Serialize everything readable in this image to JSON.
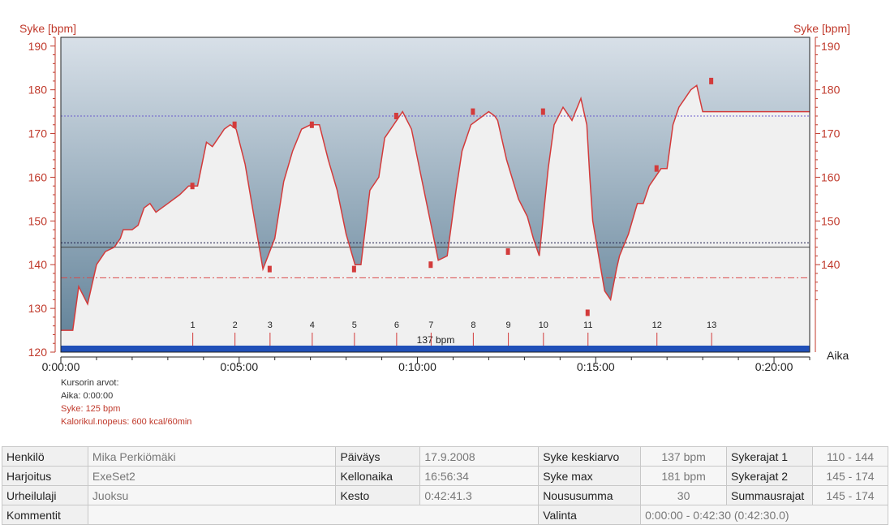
{
  "chart_data": {
    "type": "area",
    "ylabel_left": "Syke [bpm]",
    "ylabel_right": "Syke [bpm]",
    "xlabel": "Aika",
    "ylim": [
      120,
      192
    ],
    "y_ticks": [
      120,
      130,
      140,
      150,
      160,
      170,
      180,
      190
    ],
    "y_ticks_right": [
      140,
      150,
      160,
      170,
      180,
      190
    ],
    "xlim_seconds": [
      0,
      1260
    ],
    "x_ticks": [
      {
        "t": 0,
        "label": "0:00:00"
      },
      {
        "t": 300,
        "label": "0:05:00"
      },
      {
        "t": 600,
        "label": "0:10:00"
      },
      {
        "t": 900,
        "label": "0:15:00"
      },
      {
        "t": 1200,
        "label": "0:20:00"
      }
    ],
    "series": [
      {
        "x_seconds": [
          0,
          20,
          30,
          45,
          60,
          75,
          90,
          100,
          105,
          120,
          130,
          140,
          150,
          160,
          170,
          180,
          190,
          200,
          215,
          230,
          245,
          255,
          260,
          270,
          275,
          285,
          295,
          310,
          320,
          340,
          360,
          375,
          390,
          405,
          420,
          435,
          450,
          465,
          480,
          495,
          505,
          520,
          535,
          545,
          560,
          575,
          590,
          605,
          620,
          635,
          650,
          665,
          675,
          690,
          700,
          710,
          720,
          730,
          735,
          750,
          770,
          785,
          795,
          805,
          820,
          830,
          845,
          850,
          860,
          875,
          885,
          890,
          895,
          905,
          915,
          925,
          935,
          940,
          955,
          970,
          980,
          990,
          1000,
          1010,
          1020,
          1030,
          1040,
          1050,
          1060,
          1070,
          1080,
          1090,
          1100,
          1110,
          1115,
          1125,
          1140,
          1155,
          1170,
          1180,
          1185,
          1195,
          1205,
          1215,
          1225,
          1235,
          1245,
          1260
        ],
        "y": [
          125,
          125,
          135,
          131,
          140,
          143,
          144,
          146,
          148,
          148,
          149,
          153,
          154,
          152,
          153,
          154,
          155,
          156,
          158,
          158,
          168,
          167,
          168,
          170,
          171,
          172,
          171,
          163,
          155,
          139,
          146,
          159,
          166,
          171,
          172,
          172,
          164,
          157,
          147,
          140,
          140,
          157,
          160,
          169,
          172,
          175,
          171,
          161,
          151,
          141,
          142,
          157,
          166,
          172,
          173,
          174,
          175,
          174,
          173,
          164,
          155,
          151,
          146,
          142,
          162,
          172,
          176,
          175,
          173,
          178,
          172,
          160,
          150,
          142,
          134,
          132,
          139,
          142,
          147,
          154,
          154,
          158,
          160,
          162,
          162,
          172,
          176,
          178,
          180,
          181,
          175,
          175,
          175,
          175,
          175,
          175,
          175,
          175,
          175,
          175,
          175,
          175,
          175,
          175,
          175,
          175,
          175,
          175
        ]
      }
    ],
    "reference_lines": [
      {
        "y": 174,
        "style": "dotted",
        "color": "#6a5acd"
      },
      {
        "y": 145,
        "style": "dotted",
        "color": "#1a1a4a"
      },
      {
        "y": 144,
        "style": "solid",
        "color": "#444444"
      },
      {
        "y": 137,
        "style": "dashdot",
        "color": "#d94a4a"
      }
    ],
    "average_label": "137 bpm",
    "lap_markers": [
      {
        "label": "1",
        "t": 222,
        "y": 158
      },
      {
        "label": "2",
        "t": 293,
        "y": 172
      },
      {
        "label": "3",
        "t": 352,
        "y": 139
      },
      {
        "label": "4",
        "t": 423,
        "y": 172
      },
      {
        "label": "5",
        "t": 494,
        "y": 139
      },
      {
        "label": "6",
        "t": 565,
        "y": 174
      },
      {
        "label": "7",
        "t": 623,
        "y": 140
      },
      {
        "label": "8",
        "t": 694,
        "y": 175
      },
      {
        "label": "9",
        "t": 753,
        "y": 143
      },
      {
        "label": "10",
        "t": 812,
        "y": 175
      },
      {
        "label": "11",
        "t": 887,
        "y": 129
      },
      {
        "label": "12",
        "t": 1003,
        "y": 162
      },
      {
        "label": "13",
        "t": 1095,
        "y": 182
      }
    ],
    "grid": false,
    "colors": {
      "axis": "#c0392b",
      "line": "#d33b3b",
      "area_fill": "#f0f0f0",
      "bg_top": "#d8e0e8",
      "bg_bottom": "#5e7f96",
      "time_bar": "#2050b8"
    }
  },
  "cursor": {
    "title": "Kursorin arvot:",
    "time": "Aika: 0:00:00",
    "hr": "Syke: 125 bpm",
    "calorie": "Kalorikul.nopeus: 600 kcal/60min"
  },
  "info": {
    "rows": [
      [
        {
          "text": "Henkilö",
          "kind": "lbl"
        },
        {
          "text": "Mika Perkiömäki",
          "kind": "val"
        },
        {
          "text": "Päiväys",
          "kind": "lbl"
        },
        {
          "text": "17.9.2008",
          "kind": "val"
        },
        {
          "text": "Syke keskiarvo",
          "kind": "lbl"
        },
        {
          "text": "137 bpm",
          "kind": "val num"
        },
        {
          "text": "Sykerajat 1",
          "kind": "lbl"
        },
        {
          "text": "110 - 144",
          "kind": "val num"
        }
      ],
      [
        {
          "text": "Harjoitus",
          "kind": "lbl"
        },
        {
          "text": "ExeSet2",
          "kind": "val"
        },
        {
          "text": "Kellonaika",
          "kind": "lbl"
        },
        {
          "text": "16:56:34",
          "kind": "val"
        },
        {
          "text": "Syke max",
          "kind": "lbl"
        },
        {
          "text": "181 bpm",
          "kind": "val num"
        },
        {
          "text": "Sykerajat 2",
          "kind": "lbl"
        },
        {
          "text": "145 - 174",
          "kind": "val num"
        }
      ],
      [
        {
          "text": "Urheilulaji",
          "kind": "lbl"
        },
        {
          "text": "Juoksu",
          "kind": "val"
        },
        {
          "text": "Kesto",
          "kind": "lbl"
        },
        {
          "text": "0:42:41.3",
          "kind": "val"
        },
        {
          "text": "Noususumma",
          "kind": "lbl"
        },
        {
          "text": "30",
          "kind": "val num"
        },
        {
          "text": "Summausrajat",
          "kind": "lbl"
        },
        {
          "text": "145 - 174",
          "kind": "val num"
        }
      ]
    ],
    "comment_label": "Kommentit",
    "comment_value": "",
    "selection_label": "Valinta",
    "selection_value": "0:00:00 - 0:42:30 (0:42:30.0)"
  }
}
